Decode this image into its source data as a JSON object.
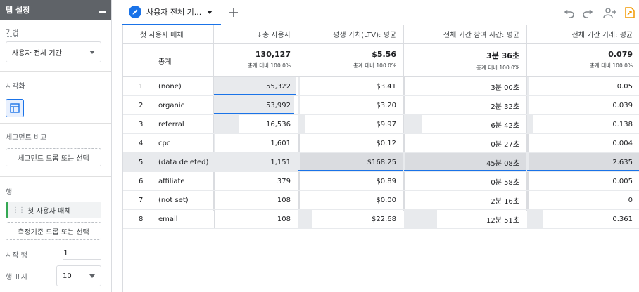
{
  "left_panel": {
    "title": "탭 설정",
    "technique_label": "기법",
    "technique_value": "사용자 전체 기간",
    "visualization_label": "시각화",
    "segment_label": "세그먼트 비교",
    "segment_drop": "세그먼트 드롭 또는 선택",
    "rows_label": "행",
    "row_chip": "첫 사용자 매체",
    "metric_drop": "측정기준 드롭 또는 선택",
    "start_row_label": "시작 행",
    "start_row_value": "1",
    "show_rows_label": "행 표시",
    "show_rows_value": "10"
  },
  "tab": {
    "label": "사용자 전체 기...",
    "icon": "pencil-icon"
  },
  "toolbar_icons": [
    "undo-icon",
    "redo-icon",
    "share-user-icon",
    "export-icon"
  ],
  "table": {
    "headers": [
      "첫 사용자 매체",
      "↓총 사용자",
      "평생 가치(LTV): 평균",
      "전체 기간 참여 시간: 평균",
      "전체 기간 거래: 평균"
    ],
    "totals_label": "총계",
    "totals": [
      {
        "value": "130,127",
        "sub": "총계 대비 100.0%"
      },
      {
        "value": "$5.56",
        "sub": "총계 대비 100.0%"
      },
      {
        "value": "3분 36초",
        "sub": "총계 대비 100.0%"
      },
      {
        "value": "0.079",
        "sub": "총계 대비 100.0%"
      }
    ],
    "rows": [
      {
        "idx": "1",
        "medium": "(none)",
        "users": "55,322",
        "ltv": "$3.41",
        "time": "3분 00초",
        "tx": "0.05",
        "users_frac": 0.99,
        "ltv_frac": 0.02,
        "time_frac": 0.0,
        "tx_frac": 0.02
      },
      {
        "idx": "2",
        "medium": "organic",
        "users": "53,992",
        "ltv": "$3.20",
        "time": "2분 32초",
        "tx": "0.039",
        "users_frac": 0.97,
        "ltv_frac": 0.02,
        "time_frac": 0.0,
        "tx_frac": 0.01
      },
      {
        "idx": "3",
        "medium": "referral",
        "users": "16,536",
        "ltv": "$9.97",
        "time": "6분 42초",
        "tx": "0.138",
        "users_frac": 0.3,
        "ltv_frac": 0.06,
        "time_frac": 0.15,
        "tx_frac": 0.05
      },
      {
        "idx": "4",
        "medium": "cpc",
        "users": "1,601",
        "ltv": "$0.12",
        "time": "0분 27초",
        "tx": "0.004",
        "users_frac": 0.02,
        "ltv_frac": 0.0,
        "time_frac": 0.0,
        "tx_frac": 0.0
      },
      {
        "idx": "5",
        "medium": "(data deleted)",
        "users": "1,151",
        "ltv": "$168.25",
        "time": "45분 08초",
        "tx": "2.635",
        "users_frac": 0.02,
        "ltv_frac": 1.0,
        "time_frac": 1.0,
        "tx_frac": 1.0
      },
      {
        "idx": "6",
        "medium": "affiliate",
        "users": "379",
        "ltv": "$0.89",
        "time": "0분 58초",
        "tx": "0.005",
        "users_frac": 0.0,
        "ltv_frac": 0.0,
        "time_frac": 0.0,
        "tx_frac": 0.0
      },
      {
        "idx": "7",
        "medium": "(not set)",
        "users": "108",
        "ltv": "$0.00",
        "time": "2분 16초",
        "tx": "0",
        "users_frac": 0.0,
        "ltv_frac": 0.0,
        "time_frac": 0.0,
        "tx_frac": 0.0
      },
      {
        "idx": "8",
        "medium": "email",
        "users": "108",
        "ltv": "$22.68",
        "time": "12분 51초",
        "tx": "0.361",
        "users_frac": 0.0,
        "ltv_frac": 0.13,
        "time_frac": 0.27,
        "tx_frac": 0.14
      }
    ]
  },
  "colors": {
    "accent": "#1a73e8",
    "header_bg": "#5f6368",
    "highlight_row": "#e8eaed",
    "chip_green": "#34a853",
    "export_orange": "#f29900"
  }
}
